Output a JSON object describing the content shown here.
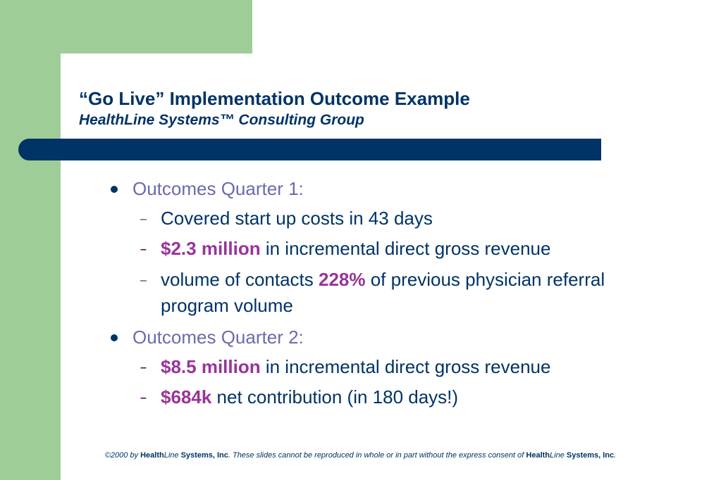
{
  "slide": {
    "title": "“Go Live” Implementation Outcome Example",
    "subtitle": "HealthLine Systems™ Consulting Group"
  },
  "q1": {
    "heading": "Outcomes Quarter 1:",
    "item1": "Covered start up costs in 43 days",
    "item2_highlight": "$2.3 million",
    "item2_rest": " in incremental direct gross revenue",
    "item3_pre": "volume of contacts ",
    "item3_highlight": "228%",
    "item3_rest": " of previous physician referral",
    "item3_line2": "program volume"
  },
  "q2": {
    "heading": "Outcomes Quarter 2:",
    "item1_highlight": "$8.5 million",
    "item1_rest": " in incremental direct gross revenue",
    "item2_highlight": "$684k",
    "item2_rest": " net contribution (in 180 days!)"
  },
  "footer": {
    "part1": "©2000 by ",
    "health": "Health",
    "line": "Line",
    "systems": " Systems, Inc",
    "part2": ". These slides cannot be reproduced in whole or in part without the express consent of ",
    "health2": "Health",
    "line2": "Line",
    "systems2": " Systems, Inc",
    "end": "."
  },
  "colors": {
    "green": "#9fcd98",
    "navy": "#003366",
    "lavender": "#6b6bab",
    "magenta": "#993399"
  }
}
